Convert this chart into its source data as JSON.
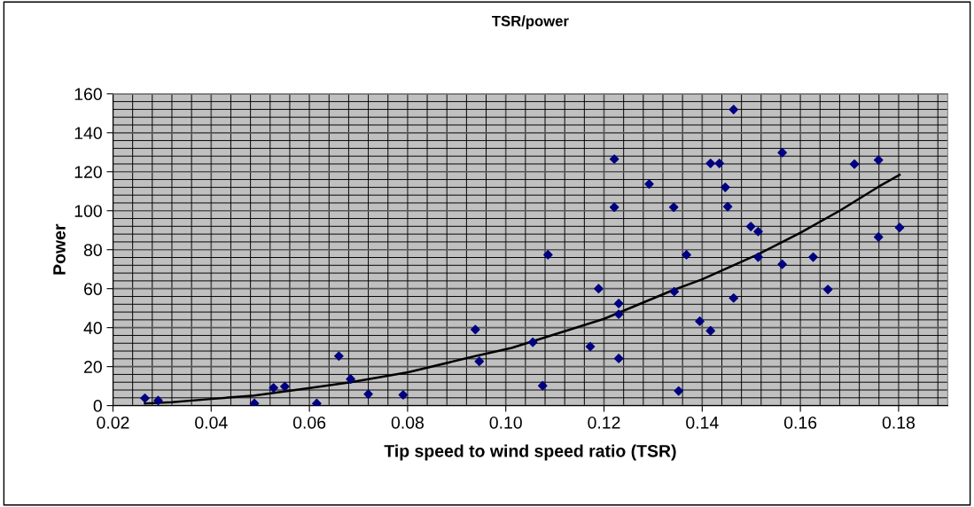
{
  "chart_data": {
    "type": "scatter",
    "title": "TSR/power",
    "xlabel": "Tip speed to wind speed ratio (TSR)",
    "ylabel": "Power",
    "xlim": [
      0.02,
      0.19
    ],
    "ylim": [
      0,
      160
    ],
    "xticks": [
      {
        "value": 0.02,
        "label": "0.02"
      },
      {
        "value": 0.04,
        "label": "0.04"
      },
      {
        "value": 0.06,
        "label": "0.06"
      },
      {
        "value": 0.08,
        "label": "0.08"
      },
      {
        "value": 0.1,
        "label": "0.10"
      },
      {
        "value": 0.12,
        "label": "0.12"
      },
      {
        "value": 0.14,
        "label": "0.14"
      },
      {
        "value": 0.16,
        "label": "0.16"
      },
      {
        "value": 0.18,
        "label": "0.18"
      }
    ],
    "yticks": [
      0,
      20,
      40,
      60,
      80,
      100,
      120,
      140,
      160
    ],
    "grid": true,
    "series": [
      {
        "color": "#000080",
        "marker": "diamond",
        "x": [
          0.0265,
          0.0292,
          0.0488,
          0.0527,
          0.055,
          0.0615,
          0.066,
          0.0684,
          0.072,
          0.0791,
          0.0938,
          0.0946,
          0.1055,
          0.1075,
          0.1086,
          0.1172,
          0.1189,
          0.1221,
          0.1221,
          0.123,
          0.123,
          0.123,
          0.1292,
          0.1342,
          0.1343,
          0.1352,
          0.1368,
          0.1395,
          0.1417,
          0.1417,
          0.1435,
          0.1447,
          0.1452,
          0.1464,
          0.1464,
          0.1499,
          0.1514,
          0.1514,
          0.1563,
          0.1563,
          0.1626,
          0.1656,
          0.171,
          0.1759,
          0.1759,
          0.1802
        ],
        "values": [
          3.8,
          2.6,
          1.1,
          9.1,
          9.8,
          1.1,
          25.4,
          13.6,
          5.9,
          5.5,
          39.0,
          22.7,
          32.5,
          10.2,
          77.4,
          30.3,
          60.0,
          126.5,
          101.8,
          52.4,
          46.9,
          24.2,
          113.7,
          101.8,
          58.5,
          7.5,
          77.4,
          43.3,
          124.3,
          38.4,
          124.3,
          112.0,
          102.1,
          151.9,
          55.2,
          91.9,
          89.3,
          76.2,
          129.8,
          72.5,
          76.2,
          59.6,
          123.9,
          126.0,
          86.5,
          91.4
        ]
      },
      {
        "type": "line",
        "color": "#000000",
        "marker": "none",
        "line_style": "solid",
        "x": [
          0.0265,
          0.032,
          0.04,
          0.0488,
          0.0601,
          0.0684,
          0.0801,
          0.0938,
          0.1012,
          0.12,
          0.1342,
          0.14,
          0.1514,
          0.16,
          0.168,
          0.1759,
          0.1802
        ],
        "values": [
          1.1,
          1.8,
          3.4,
          5.2,
          9.0,
          12.0,
          17.1,
          25.4,
          29.6,
          44.5,
          59.4,
          64.8,
          77.7,
          88.7,
          100.0,
          112.3,
          118.4
        ]
      }
    ]
  }
}
